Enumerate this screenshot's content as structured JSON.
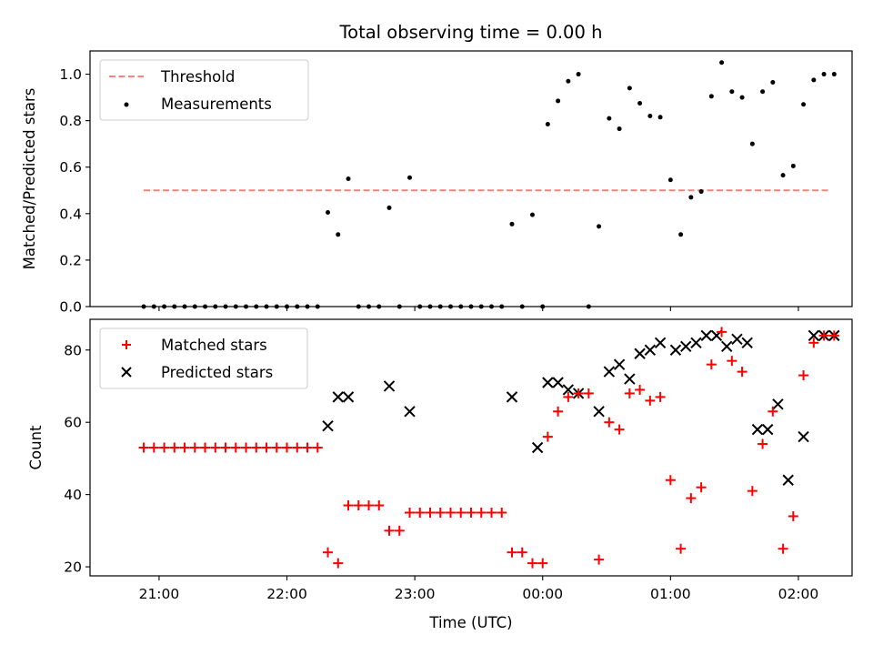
{
  "chart_data": [
    {
      "type": "scatter",
      "title": "Total observing time = 0.00 h",
      "xlabel": "",
      "ylabel": "Matched/Predicted stars",
      "ylim": [
        0,
        1.1
      ],
      "yticks": [
        "0.0",
        "0.2",
        "0.4",
        "0.6",
        "0.8",
        "1.0"
      ],
      "grid": false,
      "legend_position": "top-left",
      "colors": {
        "threshold": "#ff7f7f",
        "measurements": "#000000"
      },
      "threshold": {
        "name": "Threshold",
        "value": 0.5,
        "x_start": 20.88,
        "x_end": 26.25
      },
      "series": [
        {
          "name": "Measurements",
          "x": [
            20.88,
            20.96,
            21.04,
            21.12,
            21.2,
            21.28,
            21.36,
            21.44,
            21.52,
            21.6,
            21.68,
            21.76,
            21.84,
            21.92,
            22.0,
            22.08,
            22.16,
            22.24,
            22.32,
            22.4,
            22.48,
            22.56,
            22.64,
            22.72,
            22.8,
            22.88,
            22.96,
            23.04,
            23.12,
            23.2,
            23.28,
            23.36,
            23.44,
            23.52,
            23.6,
            23.68,
            23.76,
            23.84,
            23.92,
            24.0,
            24.04,
            24.12,
            24.2,
            24.28,
            24.36,
            24.44,
            24.52,
            24.6,
            24.68,
            24.76,
            24.84,
            24.92,
            25.0,
            25.08,
            25.16,
            25.24,
            25.32,
            25.4,
            25.48,
            25.56,
            25.64,
            25.72,
            25.8,
            25.88,
            25.96,
            26.04,
            26.12,
            26.2,
            26.28
          ],
          "y": [
            0,
            0,
            0,
            0,
            0,
            0,
            0,
            0,
            0,
            0,
            0,
            0,
            0,
            0,
            0,
            0,
            0,
            0,
            0.405,
            0.31,
            0.55,
            0,
            0,
            0,
            0.425,
            0,
            0.555,
            0,
            0,
            0,
            0,
            0,
            0,
            0,
            0,
            0,
            0.355,
            0,
            0.395,
            0,
            0.785,
            0.885,
            0.97,
            1.0,
            0,
            0.345,
            0.81,
            0.765,
            0.94,
            0.875,
            0.82,
            0.815,
            0.545,
            0.31,
            0.47,
            0.495,
            0.905,
            1.05,
            0.925,
            0.9,
            0.7,
            0.925,
            0.965,
            0.565,
            0.605,
            0.87,
            0.975,
            1.0,
            1.0
          ]
        }
      ]
    },
    {
      "type": "scatter",
      "title": "",
      "xlabel": "Time (UTC)",
      "ylabel": "Count",
      "ylim": [
        17.5,
        88.5
      ],
      "yticks": [
        "20",
        "40",
        "60",
        "80"
      ],
      "xticks": [
        "21:00",
        "22:00",
        "23:00",
        "00:00",
        "01:00",
        "02:00"
      ],
      "xlim_hours": [
        20.46,
        26.42
      ],
      "grid": false,
      "legend_position": "top-left",
      "colors": {
        "matched": "#ff0000",
        "predicted": "#000000"
      },
      "series": [
        {
          "name": "Matched stars",
          "x": [
            20.88,
            20.96,
            21.04,
            21.12,
            21.2,
            21.28,
            21.36,
            21.44,
            21.52,
            21.6,
            21.68,
            21.76,
            21.84,
            21.92,
            22.0,
            22.08,
            22.16,
            22.24,
            22.32,
            22.4,
            22.48,
            22.56,
            22.64,
            22.72,
            22.8,
            22.88,
            22.96,
            23.04,
            23.12,
            23.2,
            23.28,
            23.36,
            23.44,
            23.52,
            23.6,
            23.68,
            23.76,
            23.84,
            23.92,
            24.0,
            24.04,
            24.12,
            24.2,
            24.28,
            24.36,
            24.44,
            24.52,
            24.6,
            24.68,
            24.76,
            24.84,
            24.92,
            25.0,
            25.08,
            25.16,
            25.24,
            25.32,
            25.4,
            25.48,
            25.56,
            25.64,
            25.72,
            25.8,
            25.88,
            25.96,
            26.04,
            26.12,
            26.2,
            26.28
          ],
          "y": [
            53,
            53,
            53,
            53,
            53,
            53,
            53,
            53,
            53,
            53,
            53,
            53,
            53,
            53,
            53,
            53,
            53,
            53,
            24,
            21,
            37,
            37,
            37,
            37,
            30,
            30,
            35,
            35,
            35,
            35,
            35,
            35,
            35,
            35,
            35,
            35,
            24,
            24,
            21,
            21,
            56,
            63,
            67,
            68,
            68,
            22,
            60,
            58,
            68,
            69,
            66,
            67,
            44,
            25,
            39,
            42,
            76,
            85,
            77,
            74,
            41,
            54,
            63,
            25,
            34,
            73,
            82,
            84,
            84
          ]
        },
        {
          "name": "Predicted stars",
          "x": [
            22.32,
            22.4,
            22.48,
            22.8,
            22.96,
            23.76,
            23.96,
            24.04,
            24.12,
            24.2,
            24.28,
            24.44,
            24.52,
            24.6,
            24.68,
            24.76,
            24.84,
            24.92,
            25.04,
            25.12,
            25.2,
            25.28,
            25.36,
            25.44,
            25.52,
            25.6,
            25.68,
            25.76,
            25.84,
            25.92,
            26.04,
            26.12,
            26.2,
            26.28
          ],
          "y": [
            59,
            67,
            67,
            70,
            63,
            67,
            53,
            71,
            71,
            69,
            68,
            63,
            74,
            76,
            72,
            79,
            80,
            82,
            80,
            81,
            82,
            84,
            84,
            81,
            83,
            82,
            58,
            58,
            65,
            44,
            56,
            84,
            84,
            84
          ]
        }
      ]
    }
  ]
}
